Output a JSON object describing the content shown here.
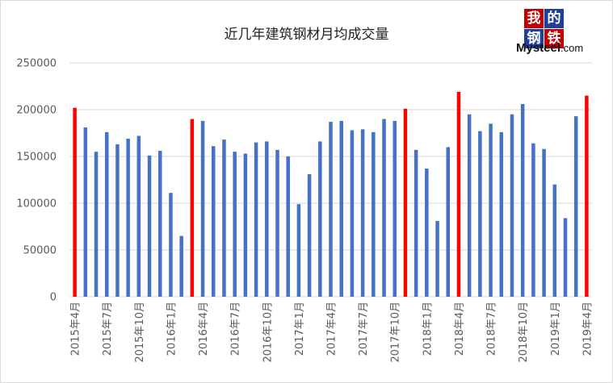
{
  "chart_data": {
    "type": "bar",
    "title": "近几年建筑钢材月均成交量",
    "xlabel": "",
    "ylabel": "",
    "ylim": [
      0,
      250000
    ],
    "yticks": [
      0,
      50000,
      100000,
      150000,
      200000,
      250000
    ],
    "ytick_labels": [
      "0",
      "50000",
      "100000",
      "150000",
      "200000",
      "250000"
    ],
    "grid": true,
    "categories": [
      "2015年4月",
      "2015年5月",
      "2015年6月",
      "2015年7月",
      "2015年8月",
      "2015年9月",
      "2015年10月",
      "2015年11月",
      "2015年12月",
      "2016年1月",
      "2016年2月",
      "2016年3月",
      "2016年4月",
      "2016年5月",
      "2016年6月",
      "2016年7月",
      "2016年8月",
      "2016年9月",
      "2016年10月",
      "2016年11月",
      "2016年12月",
      "2017年1月",
      "2017年2月",
      "2017年3月",
      "2017年4月",
      "2017年5月",
      "2017年6月",
      "2017年7月",
      "2017年8月",
      "2017年9月",
      "2017年10月",
      "2017年11月",
      "2017年12月",
      "2018年1月",
      "2018年2月",
      "2018年3月",
      "2018年4月",
      "2018年5月",
      "2018年6月",
      "2018年7月",
      "2018年8月",
      "2018年9月",
      "2018年10月",
      "2018年11月",
      "2018年12月",
      "2019年1月",
      "2019年2月",
      "2019年3月",
      "2019年4月"
    ],
    "values": [
      202000,
      181000,
      155000,
      176000,
      163000,
      169000,
      172000,
      151000,
      156000,
      111000,
      65000,
      190000,
      188000,
      161000,
      168000,
      155000,
      153000,
      165000,
      166000,
      157000,
      150000,
      99000,
      131000,
      166000,
      187000,
      188000,
      178000,
      179000,
      176000,
      190000,
      188000,
      201000,
      157000,
      137000,
      81000,
      160000,
      219000,
      195000,
      177000,
      185000,
      176000,
      195000,
      206000,
      164000,
      158000,
      120000,
      84000,
      193000,
      215000
    ],
    "highlight_indices": [
      0,
      11,
      31,
      36,
      48
    ],
    "xtick_indices": [
      0,
      3,
      6,
      9,
      12,
      15,
      18,
      21,
      24,
      27,
      30,
      33,
      36,
      39,
      42,
      45,
      48
    ],
    "colors": {
      "bar": "#4472c4",
      "highlight": "#ff0000",
      "grid": "#d9d9d9",
      "axis_text": "#595959"
    }
  },
  "logo": {
    "char1": "我",
    "char2": "的",
    "char3": "钢",
    "char4": "铁",
    "brand": "Mysteel",
    "domain": ".com",
    "colors": {
      "c1": "#c00000",
      "c2": "#1f3f99",
      "c3": "#1f3f99",
      "c4": "#c00000"
    }
  }
}
